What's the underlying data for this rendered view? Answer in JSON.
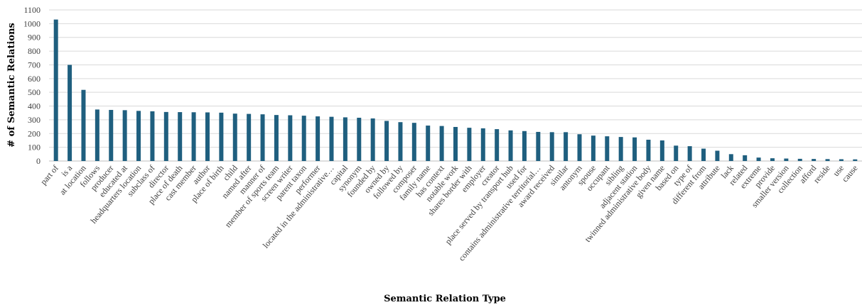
{
  "chart_data": {
    "type": "bar",
    "xlabel": "Semantic Relation Type",
    "ylabel": "# of Semantic Relations",
    "ylim": [
      0,
      1100
    ],
    "ytick_step": 100,
    "grid": true,
    "colors": {
      "bar": "#1f5f7f"
    },
    "categories": [
      "part of",
      "is a",
      "at location",
      "follows",
      "producer",
      "educated at",
      "headquarters location",
      "subclass of",
      "director",
      "place of death",
      "cast member",
      "author",
      "place of birth",
      "child",
      "named after",
      "manner of",
      "member of sports team",
      "screen writer",
      "parent taxon",
      "performer",
      "located in the administrative…",
      "capital",
      "synonym",
      "founded by",
      "owned by",
      "followed by",
      "composer",
      "family name",
      "has context",
      "notable work",
      "shares border with",
      "employer",
      "creator",
      "place served by transport hub",
      "used for",
      "contains administrative territorial…",
      "award received",
      "similar",
      "antonym",
      "spouse",
      "occupant",
      "sibling",
      "adjacent station",
      "twinned administrative body",
      "given name",
      "based on",
      "type of",
      "different from",
      "attribute",
      "lack",
      "related",
      "extreme",
      "provide",
      "smaller version",
      "collection",
      "afford",
      "reside",
      "use",
      "cause"
    ],
    "values": [
      1030,
      700,
      518,
      375,
      372,
      370,
      365,
      362,
      357,
      356,
      355,
      354,
      352,
      345,
      343,
      340,
      335,
      333,
      330,
      325,
      322,
      318,
      315,
      310,
      292,
      283,
      278,
      258,
      255,
      248,
      242,
      238,
      232,
      223,
      218,
      212,
      210,
      210,
      195,
      185,
      180,
      175,
      172,
      155,
      150,
      112,
      108,
      90,
      75,
      50,
      42,
      25,
      20,
      18,
      16,
      15,
      14,
      13,
      12
    ]
  }
}
